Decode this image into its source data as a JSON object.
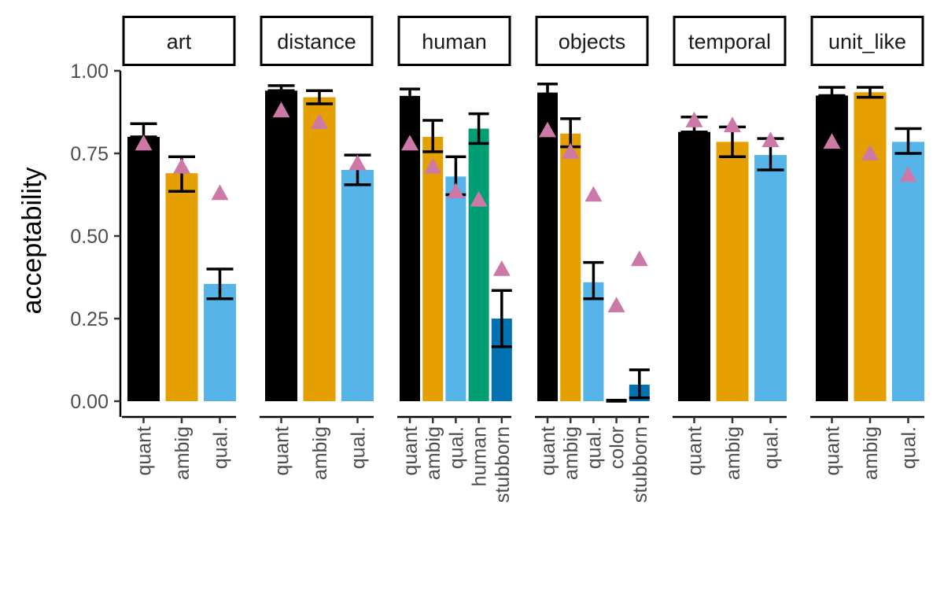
{
  "chart_data": {
    "type": "bar",
    "ylabel": "acceptability",
    "xlabel": "",
    "ylim": [
      -0.04,
      1.1
    ],
    "yticks": [
      0,
      0.25,
      0.5,
      0.75,
      1.0
    ],
    "ytick_labels": [
      "0.00",
      "0.25",
      "0.50",
      "0.75",
      "1.00"
    ],
    "grid": false,
    "legend": "none",
    "colors": {
      "quant": "#000000",
      "ambig": "#E69F00",
      "qual.": "#56B4E9",
      "human": "#009E73",
      "color": "#000000",
      "stubborn": "#0072B2",
      "triangle": "#CC79A7",
      "strip_border": "#000000"
    },
    "panels": [
      {
        "name": "art",
        "categories": [
          "quant",
          "ambig",
          "qual."
        ],
        "values": [
          0.8,
          0.69,
          0.355
        ],
        "err_low": [
          0.8,
          0.635,
          0.31
        ],
        "err_high": [
          0.84,
          0.74,
          0.4
        ],
        "triangles": [
          0.78,
          0.71,
          0.63
        ]
      },
      {
        "name": "distance",
        "categories": [
          "quant",
          "ambig",
          "qual."
        ],
        "values": [
          0.94,
          0.92,
          0.7
        ],
        "err_low": [
          0.94,
          0.9,
          0.655
        ],
        "err_high": [
          0.955,
          0.94,
          0.745
        ],
        "triangles": [
          0.88,
          0.845,
          0.72
        ]
      },
      {
        "name": "human",
        "categories": [
          "quant",
          "ambig",
          "qual.",
          "human",
          "stubborn"
        ],
        "values": [
          0.92,
          0.8,
          0.68,
          0.825,
          0.25
        ],
        "err_low": [
          0.92,
          0.755,
          0.625,
          0.78,
          0.165
        ],
        "err_high": [
          0.945,
          0.85,
          0.74,
          0.87,
          0.335
        ],
        "triangles": [
          0.78,
          0.71,
          0.635,
          0.61,
          0.4
        ]
      },
      {
        "name": "objects",
        "categories": [
          "quant",
          "ambig",
          "qual.",
          "color",
          "stubborn"
        ],
        "values": [
          0.93,
          0.81,
          0.36,
          0.003,
          0.05
        ],
        "err_low": [
          0.93,
          0.77,
          0.31,
          0.0,
          0.01
        ],
        "err_high": [
          0.96,
          0.855,
          0.42,
          0.003,
          0.095
        ],
        "triangles": [
          0.82,
          0.755,
          0.625,
          0.29,
          0.43
        ]
      },
      {
        "name": "temporal",
        "categories": [
          "quant",
          "ambig",
          "qual."
        ],
        "values": [
          0.815,
          0.785,
          0.745
        ],
        "err_low": [
          0.815,
          0.74,
          0.7
        ],
        "err_high": [
          0.86,
          0.83,
          0.795
        ],
        "triangles": [
          0.85,
          0.835,
          0.79
        ]
      },
      {
        "name": "unit_like",
        "categories": [
          "quant",
          "ambig",
          "qual."
        ],
        "values": [
          0.925,
          0.935,
          0.785
        ],
        "err_low": [
          0.925,
          0.92,
          0.75
        ],
        "err_high": [
          0.95,
          0.95,
          0.825
        ],
        "triangles": [
          0.785,
          0.75,
          0.685
        ]
      }
    ]
  }
}
